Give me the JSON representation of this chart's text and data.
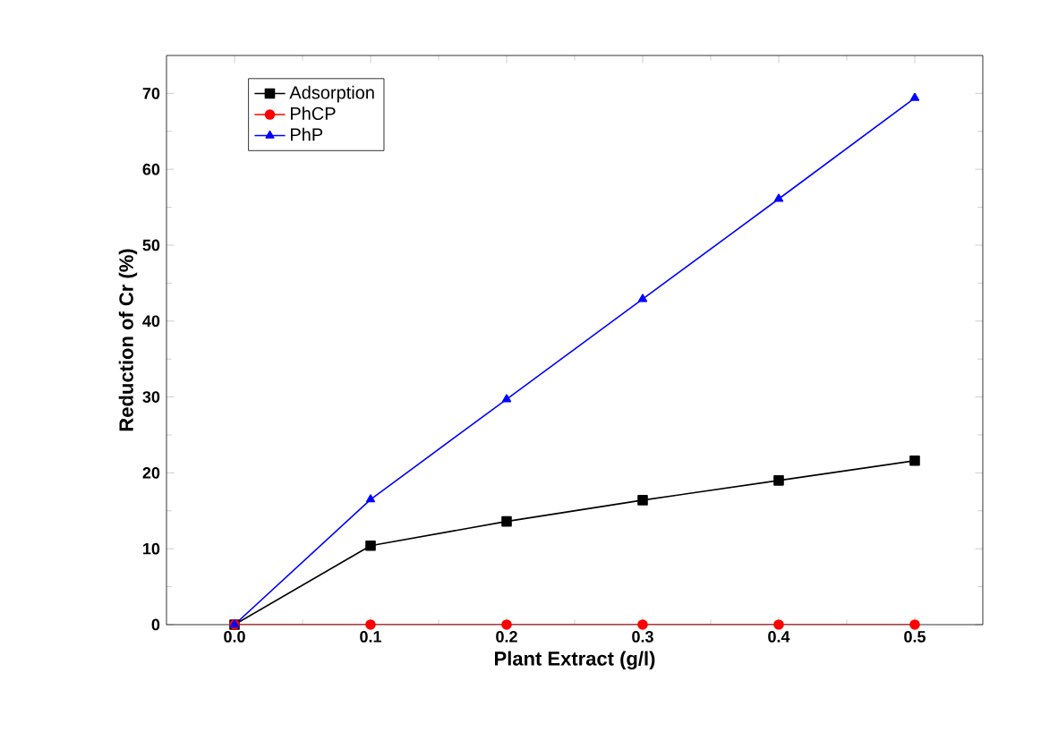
{
  "chart_data": {
    "type": "line",
    "xlabel": "Plant Extract (g/l)",
    "ylabel": "Reduction of Cr (%)",
    "x": [
      0.0,
      0.1,
      0.2,
      0.3,
      0.4,
      0.5
    ],
    "series": [
      {
        "name": "Adsorption",
        "color": "#000000",
        "marker": "square",
        "values": [
          0,
          10.4,
          13.6,
          16.4,
          19.0,
          21.6
        ]
      },
      {
        "name": "PhCP",
        "color": "#ff0000",
        "marker": "circle",
        "values": [
          0,
          0,
          0,
          0,
          0,
          0
        ]
      },
      {
        "name": "PhP",
        "color": "#0000ff",
        "marker": "triangle",
        "values": [
          0,
          16.5,
          29.7,
          42.9,
          56.1,
          69.4
        ]
      }
    ],
    "xlim": [
      -0.05,
      0.55
    ],
    "ylim": [
      0,
      75
    ],
    "xticks": [
      {
        "value": 0.0,
        "label": "0.0"
      },
      {
        "value": 0.1,
        "label": "0.1"
      },
      {
        "value": 0.2,
        "label": "0.2"
      },
      {
        "value": 0.3,
        "label": "0.3"
      },
      {
        "value": 0.4,
        "label": "0.4"
      },
      {
        "value": 0.5,
        "label": "0.5"
      }
    ],
    "yticks": [
      0,
      10,
      20,
      30,
      40,
      50,
      60,
      70
    ],
    "grid": false,
    "legend": "top left",
    "line_style": "solid"
  }
}
